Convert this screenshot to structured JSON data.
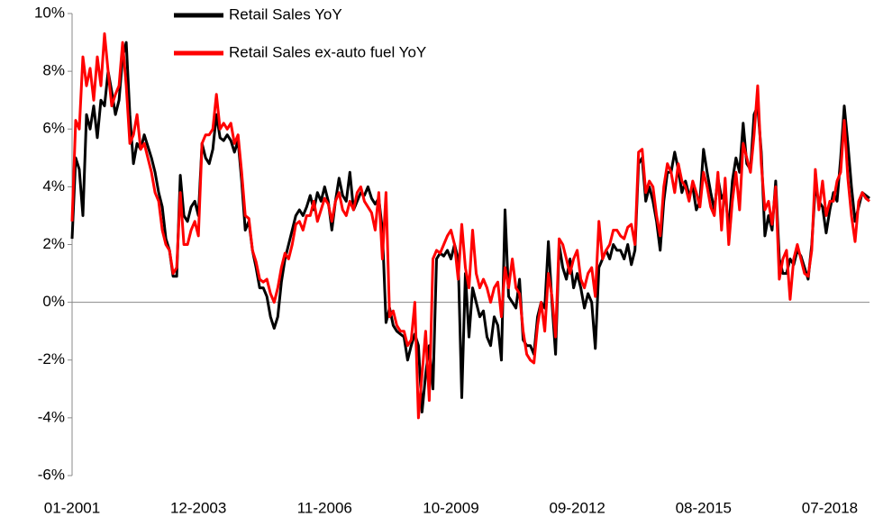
{
  "chart_data": {
    "type": "line",
    "categories": [
      "01-2001",
      null,
      null,
      null,
      null,
      null,
      null,
      null,
      null,
      null,
      null,
      null,
      null,
      null,
      null,
      null,
      null,
      null,
      null,
      null,
      null,
      null,
      null,
      null,
      null,
      null,
      null,
      null,
      null,
      null,
      null,
      null,
      null,
      null,
      null,
      "12-2003",
      null,
      null,
      null,
      null,
      null,
      null,
      null,
      null,
      null,
      null,
      null,
      null,
      null,
      null,
      null,
      null,
      null,
      null,
      null,
      null,
      null,
      null,
      null,
      null,
      null,
      null,
      null,
      null,
      null,
      null,
      null,
      null,
      null,
      null,
      "11-2006",
      null,
      null,
      null,
      null,
      null,
      null,
      null,
      null,
      null,
      null,
      null,
      null,
      null,
      null,
      null,
      null,
      null,
      null,
      null,
      null,
      null,
      null,
      null,
      null,
      null,
      null,
      null,
      null,
      null,
      null,
      null,
      null,
      null,
      null,
      "10-2009",
      null,
      null,
      null,
      null,
      null,
      null,
      null,
      null,
      null,
      null,
      null,
      null,
      null,
      null,
      null,
      null,
      null,
      null,
      null,
      null,
      null,
      null,
      null,
      null,
      null,
      null,
      null,
      null,
      null,
      null,
      null,
      null,
      null,
      null,
      "09-2012",
      null,
      null,
      null,
      null,
      null,
      null,
      null,
      null,
      null,
      null,
      null,
      null,
      null,
      null,
      null,
      null,
      null,
      null,
      null,
      null,
      null,
      null,
      null,
      null,
      null,
      null,
      null,
      null,
      null,
      null,
      null,
      null,
      null,
      null,
      "08-2015",
      null,
      null,
      null,
      null,
      null,
      null,
      null,
      null,
      null,
      null,
      null,
      null,
      null,
      null,
      null,
      null,
      null,
      null,
      null,
      null,
      null,
      null,
      null,
      null,
      null,
      null,
      null,
      null,
      null,
      null,
      null,
      null,
      null,
      null,
      "07-2018",
      null,
      null,
      null,
      null,
      null,
      null,
      null,
      null,
      null,
      null,
      null
    ],
    "series": [
      {
        "name": "Retail Sales YoY",
        "color": "#000000",
        "values": [
          2.2,
          5,
          4.6,
          3,
          6.5,
          6,
          6.8,
          5.7,
          7,
          6.8,
          8,
          7.3,
          6.5,
          7,
          8.5,
          9,
          6.5,
          4.8,
          5.5,
          5.3,
          5.8,
          5.4,
          5,
          4.5,
          3.8,
          3.3,
          2.2,
          1.8,
          0.9,
          0.9,
          4.4,
          3,
          2.8,
          3.3,
          3.5,
          3,
          5.5,
          5,
          4.8,
          5.3,
          6.5,
          5.7,
          5.6,
          5.8,
          5.6,
          5.2,
          5.6,
          4.2,
          2.5,
          2.8,
          1.8,
          1.2,
          0.5,
          0.5,
          0.2,
          -0.5,
          -0.9,
          -0.5,
          0.7,
          1.5,
          2,
          2.5,
          3,
          3.2,
          3,
          3.3,
          3.7,
          3.2,
          3.8,
          3.5,
          4,
          3.5,
          2.5,
          3.5,
          4.3,
          3.7,
          3.5,
          4.5,
          3.2,
          3.5,
          3.8,
          3.7,
          4,
          3.6,
          3.4,
          3.6,
          2.5,
          -0.7,
          -0.2,
          -0.8,
          -1,
          -1.1,
          -1.2,
          -2,
          -1.5,
          -1.1,
          -1.5,
          -3.8,
          -2.5,
          -1.5,
          -3,
          1.5,
          1.7,
          1.6,
          1.8,
          1.5,
          2,
          1.5,
          -3.3,
          1,
          -1.2,
          0.5,
          0,
          -0.5,
          -0.3,
          -1.2,
          -1.5,
          -0.5,
          -0.8,
          -2,
          3.2,
          0.2,
          0,
          -0.2,
          0.8,
          -1.3,
          -1.5,
          -1.5,
          -1.8,
          -0.5,
          0,
          -0.2,
          2.1,
          0,
          -1.8,
          2,
          1.2,
          0.8,
          1.5,
          0.5,
          1,
          0.5,
          -0.2,
          0.3,
          0,
          -1.6,
          1.2,
          1.5,
          1.8,
          1.5,
          2,
          1.8,
          1.8,
          1.5,
          2,
          1.3,
          1.8,
          4.8,
          5,
          3.5,
          4,
          3.5,
          2.8,
          1.8,
          3.5,
          4.5,
          4.5,
          5.2,
          4.6,
          3.8,
          4.2,
          3.7,
          4,
          3.2,
          3.5,
          5.3,
          4.5,
          3.8,
          3.2,
          4.3,
          3.6,
          3.8,
          2.5,
          4.2,
          5,
          4.5,
          6.2,
          4.8,
          4.6,
          6.5,
          6.8,
          5.2,
          2.3,
          3,
          2.5,
          4.2,
          1.5,
          1,
          1,
          1.5,
          1.3,
          1.8,
          1.6,
          1.2,
          0.8,
          2,
          4,
          3.5,
          3.3,
          2.4,
          3.2,
          3.8,
          3.5,
          5,
          6.8,
          5.5,
          4,
          2.8,
          3.3,
          3.8,
          3.7,
          3.6
        ]
      },
      {
        "name": "Retail Sales ex-auto fuel YoY",
        "color": "#ff0000",
        "values": [
          2.8,
          6.3,
          6,
          8.5,
          7.5,
          8.1,
          7,
          8.5,
          7.5,
          9.3,
          8,
          6.8,
          7.2,
          7.5,
          9,
          7.5,
          5.5,
          5.8,
          6.5,
          5.3,
          5.5,
          5,
          4.5,
          3.8,
          3.5,
          2.5,
          2,
          1.8,
          1,
          1.2,
          3.8,
          2,
          2,
          2.5,
          2.8,
          2.3,
          5.5,
          5.8,
          5.8,
          6,
          7.2,
          6,
          6.2,
          6,
          6.2,
          5.5,
          5.8,
          4.5,
          3,
          2.9,
          1.8,
          1.4,
          0.8,
          0.7,
          0.8,
          0.3,
          0,
          0.5,
          1.2,
          1.7,
          1.5,
          2,
          2.7,
          2.8,
          2.5,
          3,
          3,
          3.5,
          2.8,
          3.2,
          3.6,
          3.4,
          2.8,
          3.5,
          3.8,
          3.2,
          3,
          3.5,
          3.2,
          3.8,
          4,
          3.5,
          3.3,
          3.1,
          2.5,
          3.8,
          1.5,
          3.8,
          -0.5,
          -0.3,
          -0.8,
          -1,
          -1,
          -1.5,
          -1.3,
          0,
          -4,
          -2.5,
          -1,
          -3.4,
          1.5,
          1.8,
          1.7,
          2,
          2.3,
          2.5,
          2,
          0.8,
          2.7,
          1.2,
          0.5,
          2.5,
          1,
          0.5,
          0.8,
          0.5,
          0,
          0.5,
          0.7,
          -0.5,
          1.2,
          0.5,
          1.5,
          0.5,
          0.3,
          -1,
          -1.8,
          -2,
          -2.1,
          -0.8,
          0,
          -1,
          1,
          0.2,
          -1.2,
          2.2,
          2,
          1.5,
          1,
          1.5,
          1.8,
          0.8,
          0.5,
          1,
          1.2,
          0.2,
          2.8,
          1.5,
          1.8,
          2,
          2.5,
          2.5,
          2.3,
          2.2,
          2.6,
          2.7,
          2,
          5.2,
          5.3,
          3.8,
          4.2,
          4,
          3,
          2.3,
          4,
          4.8,
          4.5,
          3.8,
          4.8,
          4.2,
          4,
          3.5,
          4.2,
          3.8,
          3.3,
          4.5,
          4,
          3.3,
          3,
          4.5,
          2.5,
          4.3,
          2,
          3.5,
          4.5,
          3.2,
          5.5,
          5,
          4.5,
          5.8,
          7.5,
          4.8,
          3.2,
          3.5,
          2.7,
          4,
          0.8,
          1.5,
          1.8,
          0.1,
          1.5,
          2,
          1.5,
          1,
          0.9,
          1.8,
          4.6,
          3.2,
          4.2,
          3,
          3.5,
          3.5,
          4.2,
          4.5,
          6.3,
          4.3,
          3,
          2.1,
          3.5,
          3.8,
          3.6,
          3.5
        ]
      }
    ],
    "ylim": [
      -6,
      10
    ],
    "yticks": [
      {
        "value": -6,
        "label": "-6%"
      },
      {
        "value": -4,
        "label": "-4%"
      },
      {
        "value": -2,
        "label": "-2%"
      },
      {
        "value": 0,
        "label": "0%"
      },
      {
        "value": 2,
        "label": "2%"
      },
      {
        "value": 4,
        "label": "4%"
      },
      {
        "value": 6,
        "label": "6%"
      },
      {
        "value": 8,
        "label": "8%"
      },
      {
        "value": 10,
        "label": "10%"
      }
    ],
    "legend": "upper left"
  }
}
